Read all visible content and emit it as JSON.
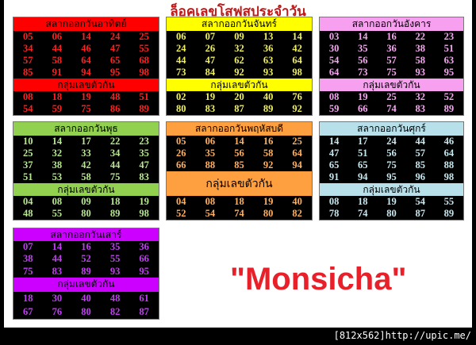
{
  "title": "ล็อคเลขโสฟสประจำวัน",
  "brand": "\"Monsicha\"",
  "footer": "[812x562]http://upic.me/",
  "boxes": [
    {
      "day": "sunday",
      "header": "สลากออกวันอาทิตย์",
      "sub": "กลุ่มเลขตัวกัน",
      "color": "#ff0000",
      "text": "#ff2020",
      "main": [
        [
          "05",
          "06",
          "14",
          "24",
          "25"
        ],
        [
          "34",
          "44",
          "46",
          "47",
          "55"
        ],
        [
          "57",
          "58",
          "64",
          "65",
          "68"
        ],
        [
          "85",
          "91",
          "94",
          "95",
          "98"
        ]
      ],
      "group": [
        [
          "08",
          "18",
          "19",
          "48",
          "51"
        ],
        [
          "54",
          "59",
          "75",
          "86",
          "89"
        ]
      ]
    },
    {
      "day": "monday",
      "header": "สลากออกวันจันทร์",
      "sub": "กลุ่มเลขตัวกัน",
      "color": "#ffff00",
      "text": "#f0f060",
      "main": [
        [
          "06",
          "07",
          "09",
          "13",
          "14"
        ],
        [
          "24",
          "26",
          "32",
          "36",
          "42"
        ],
        [
          "44",
          "47",
          "62",
          "63",
          "64"
        ],
        [
          "73",
          "84",
          "92",
          "93",
          "98"
        ]
      ],
      "group": [
        [
          "02",
          "19",
          "20",
          "40",
          "76"
        ],
        [
          "80",
          "83",
          "87",
          "89",
          "92"
        ]
      ]
    },
    {
      "day": "tuesday",
      "header": "สลากออกวันอังคาร",
      "sub": "กลุ่มเลขตัวกัน",
      "color": "#f7a0f0",
      "text": "#f5a8f0",
      "main": [
        [
          "03",
          "14",
          "16",
          "22",
          "23"
        ],
        [
          "30",
          "35",
          "36",
          "38",
          "51"
        ],
        [
          "54",
          "56",
          "57",
          "58",
          "63"
        ],
        [
          "64",
          "73",
          "75",
          "93",
          "95"
        ]
      ],
      "group": [
        [
          "08",
          "19",
          "25",
          "32",
          "52"
        ],
        [
          "59",
          "66",
          "74",
          "83",
          "89"
        ]
      ]
    },
    {
      "day": "wednesday",
      "header": "สลากออกวันพุธ",
      "sub": "กลุ่มเลขตัวกัน",
      "color": "#92d050",
      "text": "#b8e890",
      "main": [
        [
          "10",
          "14",
          "17",
          "22",
          "23"
        ],
        [
          "25",
          "32",
          "33",
          "34",
          "35"
        ],
        [
          "37",
          "38",
          "42",
          "44",
          "47"
        ],
        [
          "51",
          "53",
          "58",
          "75",
          "83"
        ]
      ],
      "group": [
        [
          "04",
          "08",
          "09",
          "18",
          "19"
        ],
        [
          "48",
          "55",
          "80",
          "89",
          "98"
        ]
      ]
    },
    {
      "day": "thursday",
      "header": "สลากออกวันพฤหัสบดี",
      "sub": "กลุ่มเลขตัวกัน",
      "color": "#ffa040",
      "text": "#ffb060",
      "main": [
        [
          "05",
          "06",
          "14",
          "16",
          "25"
        ],
        [
          "26",
          "35",
          "56",
          "58",
          "64"
        ],
        [
          "66",
          "88",
          "85",
          "92",
          "94"
        ]
      ],
      "group": [
        [
          "04",
          "08",
          "18",
          "19",
          "40"
        ],
        [
          "52",
          "54",
          "74",
          "80",
          "82"
        ]
      ]
    },
    {
      "day": "friday",
      "header": "สลากออกวันศุกร์",
      "sub": "กลุ่มเลขตัวกัน",
      "color": "#b8e0ea",
      "text": "#c8e8f0",
      "main": [
        [
          "14",
          "17",
          "24",
          "44",
          "46"
        ],
        [
          "47",
          "51",
          "56",
          "57",
          "64"
        ],
        [
          "65",
          "65",
          "75",
          "85",
          "88"
        ],
        [
          "91",
          "94",
          "95",
          "96",
          "98"
        ]
      ],
      "group": [
        [
          "08",
          "18",
          "19",
          "54",
          "55"
        ],
        [
          "78",
          "74",
          "80",
          "87",
          "89"
        ]
      ]
    },
    {
      "day": "saturday",
      "header": "สลากออกวันเสาร์",
      "sub": "กลุ่มเลขตัวกัน",
      "color": "#cc00ff",
      "text": "#c040f0",
      "main": [
        [
          "07",
          "14",
          "16",
          "35",
          "36"
        ],
        [
          "38",
          "44",
          "52",
          "55",
          "66"
        ],
        [
          "75",
          "83",
          "89",
          "93",
          "95"
        ]
      ],
      "group": [
        [
          "18",
          "30",
          "40",
          "48",
          "61"
        ],
        [
          "67",
          "76",
          "80",
          "82",
          "87"
        ]
      ]
    }
  ]
}
